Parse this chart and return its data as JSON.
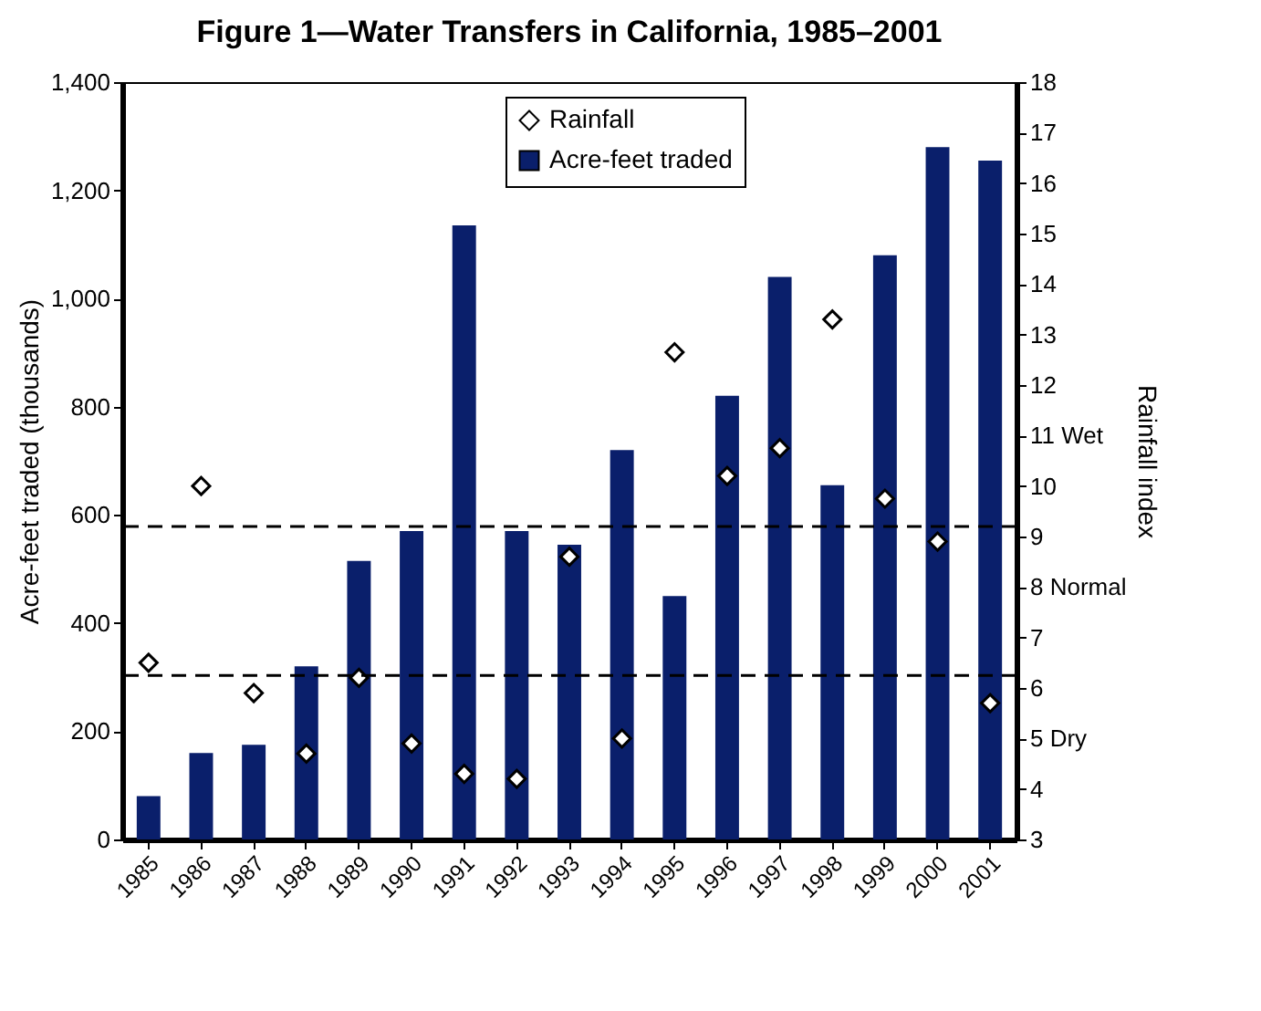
{
  "chart_data": {
    "type": "bar",
    "title": "Figure 1—Water Transfers in California, 1985–2001",
    "ylabel": "Acre-feet traded (thousands)",
    "y2label": "Rainfall index",
    "categories": [
      "1985",
      "1986",
      "1987",
      "1988",
      "1989",
      "1990",
      "1991",
      "1992",
      "1993",
      "1994",
      "1995",
      "1996",
      "1997",
      "1998",
      "1999",
      "2000",
      "2001"
    ],
    "series": [
      {
        "name": "Rainfall",
        "type": "scatter",
        "axis": "y2",
        "color": "#ffffff",
        "marker": "diamond",
        "values": [
          6.5,
          10.0,
          5.9,
          4.7,
          6.2,
          4.9,
          4.3,
          4.2,
          8.6,
          5.0,
          12.65,
          10.2,
          10.75,
          13.3,
          9.75,
          8.9,
          5.7
        ]
      },
      {
        "name": "Acre-feet traded",
        "type": "bar",
        "color": "#0a1f6b",
        "values": [
          80,
          160,
          175,
          320,
          515,
          570,
          1135,
          570,
          545,
          720,
          450,
          820,
          1040,
          655,
          1080,
          1280,
          1255
        ]
      }
    ],
    "ylim": [
      0,
      1400
    ],
    "yticks": [
      0,
      200,
      400,
      600,
      800,
      {
        "value": 1000,
        "label": "1,000"
      },
      {
        "value": 1200,
        "label": "1,200"
      },
      {
        "value": 1400,
        "label": "1,400"
      }
    ],
    "y2lim": [
      3,
      18
    ],
    "y2ticks": [
      3,
      4,
      {
        "value": 5,
        "label": "5 Dry"
      },
      6,
      7,
      {
        "value": 8,
        "label": "8 Normal"
      },
      9,
      10,
      {
        "value": 11,
        "label": "11 Wet"
      },
      12,
      13,
      14,
      15,
      16,
      17,
      18
    ],
    "ref_lines": [
      {
        "axis": "y2",
        "value": 9.2,
        "line_style": "dashed"
      },
      {
        "axis": "y2",
        "value": 6.25,
        "line_style": "dashed"
      }
    ],
    "legend": "top",
    "grid": false
  }
}
